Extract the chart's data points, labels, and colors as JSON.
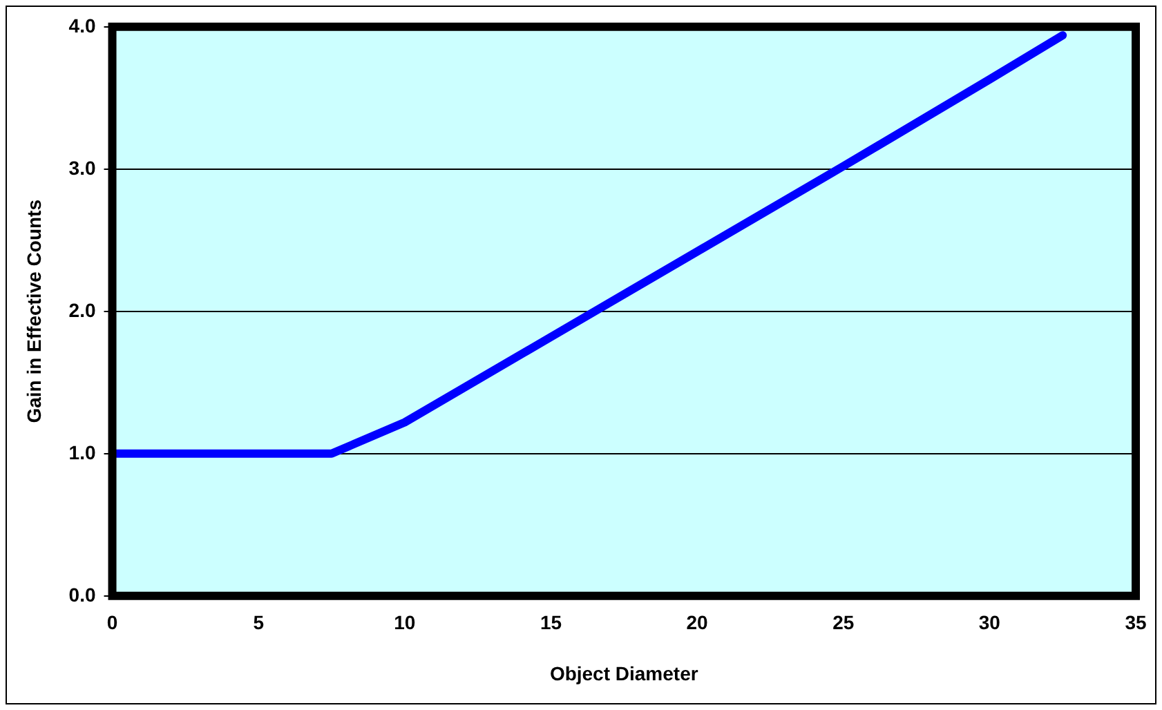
{
  "chart_data": {
    "type": "line",
    "xlabel": "Object Diameter",
    "ylabel": "Gain in Effective Counts",
    "x": [
      0,
      2.5,
      5,
      7.5,
      10,
      15,
      20,
      25,
      30,
      32.5
    ],
    "series": [
      {
        "color": "#0000ff",
        "values": [
          1,
          1,
          1,
          1,
          1.22,
          1.82,
          2.42,
          3.02,
          3.63,
          3.94
        ]
      }
    ],
    "xlim": [
      0,
      35
    ],
    "xticks": [
      0,
      5,
      10,
      15,
      20,
      25,
      30,
      35
    ],
    "ylim": [
      0,
      4
    ],
    "yticks": [
      {
        "value": 0,
        "label": "0.0"
      },
      {
        "value": 1,
        "label": "1.0"
      },
      {
        "value": 2,
        "label": "2.0"
      },
      {
        "value": 3,
        "label": "3.0"
      },
      {
        "value": 4,
        "label": "4.0"
      }
    ],
    "grid": "y",
    "legend": false,
    "marker": "none",
    "line_style": "solid"
  }
}
